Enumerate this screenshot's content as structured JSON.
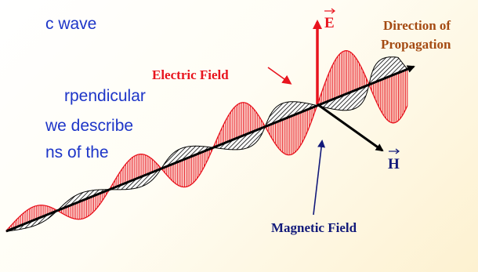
{
  "slide_text": [
    "c wave",
    "rpendicular",
    "we describe",
    "ns of the"
  ],
  "labels": {
    "e_vector": "E",
    "h_vector": "H",
    "electric_field": "Electric Field",
    "magnetic_field": "Magnetic Field",
    "direction_line1": "Direction of",
    "direction_line2": "Propagation"
  },
  "colors": {
    "electric": "#e8141e",
    "magnetic": "#000000",
    "text_blue": "#1d35c8",
    "navy": "#121a7a",
    "brown": "#a44a12"
  }
}
